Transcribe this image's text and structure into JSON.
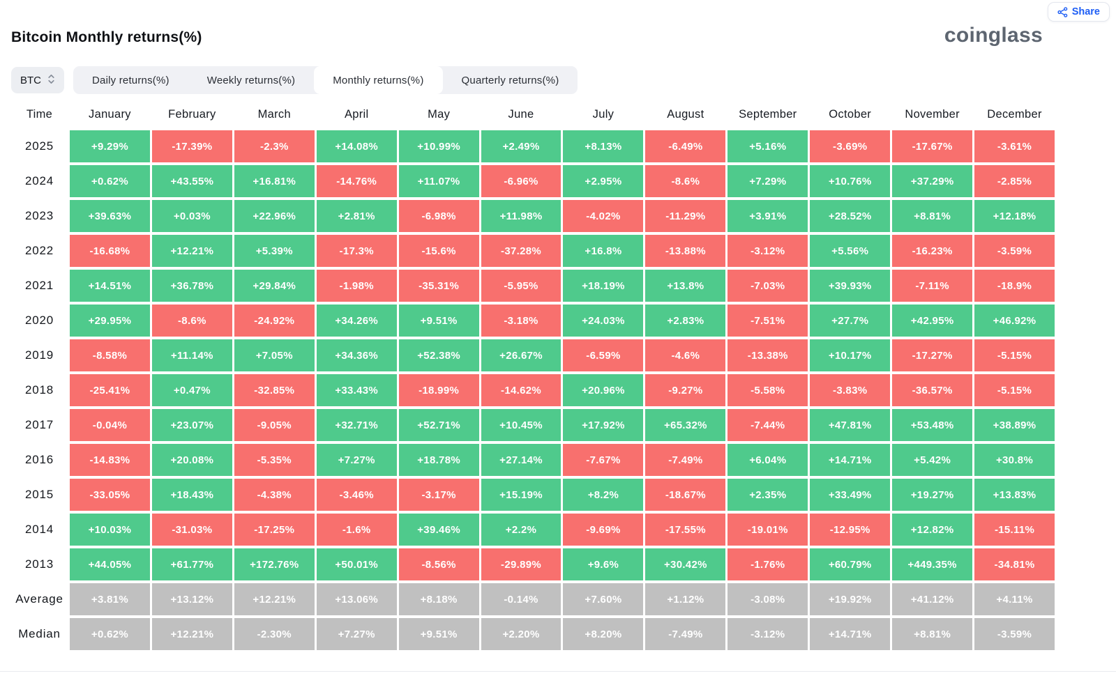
{
  "header": {
    "share_label": "Share",
    "title": "Bitcoin Monthly returns(%)",
    "logo_text": "coinglass"
  },
  "controls": {
    "symbol": "BTC",
    "tabs": [
      {
        "label": "Daily returns(%)",
        "active": false
      },
      {
        "label": "Weekly returns(%)",
        "active": false
      },
      {
        "label": "Monthly returns(%)",
        "active": true
      },
      {
        "label": "Quarterly returns(%)",
        "active": false
      }
    ]
  },
  "colors": {
    "positive": "#4fca8c",
    "negative": "#f8706e",
    "summary": "#c0c0c0",
    "accent": "#1e5ef5",
    "logo": "#5d6570"
  },
  "chart_data": {
    "type": "heatmap",
    "title": "Bitcoin Monthly returns(%)",
    "unit": "%",
    "columns": [
      "Time",
      "January",
      "February",
      "March",
      "April",
      "May",
      "June",
      "July",
      "August",
      "September",
      "October",
      "November",
      "December"
    ],
    "rows": [
      {
        "label": "2025",
        "kind": "year",
        "values": [
          "+9.29%",
          "-17.39%",
          "-2.3%",
          "+14.08%",
          "+10.99%",
          "+2.49%",
          "+8.13%",
          "-6.49%",
          "+5.16%",
          "-3.69%",
          "-17.67%",
          "-3.61%"
        ]
      },
      {
        "label": "2024",
        "kind": "year",
        "values": [
          "+0.62%",
          "+43.55%",
          "+16.81%",
          "-14.76%",
          "+11.07%",
          "-6.96%",
          "+2.95%",
          "-8.6%",
          "+7.29%",
          "+10.76%",
          "+37.29%",
          "-2.85%"
        ]
      },
      {
        "label": "2023",
        "kind": "year",
        "values": [
          "+39.63%",
          "+0.03%",
          "+22.96%",
          "+2.81%",
          "-6.98%",
          "+11.98%",
          "-4.02%",
          "-11.29%",
          "+3.91%",
          "+28.52%",
          "+8.81%",
          "+12.18%"
        ]
      },
      {
        "label": "2022",
        "kind": "year",
        "values": [
          "-16.68%",
          "+12.21%",
          "+5.39%",
          "-17.3%",
          "-15.6%",
          "-37.28%",
          "+16.8%",
          "-13.88%",
          "-3.12%",
          "+5.56%",
          "-16.23%",
          "-3.59%"
        ]
      },
      {
        "label": "2021",
        "kind": "year",
        "values": [
          "+14.51%",
          "+36.78%",
          "+29.84%",
          "-1.98%",
          "-35.31%",
          "-5.95%",
          "+18.19%",
          "+13.8%",
          "-7.03%",
          "+39.93%",
          "-7.11%",
          "-18.9%"
        ]
      },
      {
        "label": "2020",
        "kind": "year",
        "values": [
          "+29.95%",
          "-8.6%",
          "-24.92%",
          "+34.26%",
          "+9.51%",
          "-3.18%",
          "+24.03%",
          "+2.83%",
          "-7.51%",
          "+27.7%",
          "+42.95%",
          "+46.92%"
        ]
      },
      {
        "label": "2019",
        "kind": "year",
        "values": [
          "-8.58%",
          "+11.14%",
          "+7.05%",
          "+34.36%",
          "+52.38%",
          "+26.67%",
          "-6.59%",
          "-4.6%",
          "-13.38%",
          "+10.17%",
          "-17.27%",
          "-5.15%"
        ]
      },
      {
        "label": "2018",
        "kind": "year",
        "values": [
          "-25.41%",
          "+0.47%",
          "-32.85%",
          "+33.43%",
          "-18.99%",
          "-14.62%",
          "+20.96%",
          "-9.27%",
          "-5.58%",
          "-3.83%",
          "-36.57%",
          "-5.15%"
        ]
      },
      {
        "label": "2017",
        "kind": "year",
        "values": [
          "-0.04%",
          "+23.07%",
          "-9.05%",
          "+32.71%",
          "+52.71%",
          "+10.45%",
          "+17.92%",
          "+65.32%",
          "-7.44%",
          "+47.81%",
          "+53.48%",
          "+38.89%"
        ]
      },
      {
        "label": "2016",
        "kind": "year",
        "values": [
          "-14.83%",
          "+20.08%",
          "-5.35%",
          "+7.27%",
          "+18.78%",
          "+27.14%",
          "-7.67%",
          "-7.49%",
          "+6.04%",
          "+14.71%",
          "+5.42%",
          "+30.8%"
        ]
      },
      {
        "label": "2015",
        "kind": "year",
        "values": [
          "-33.05%",
          "+18.43%",
          "-4.38%",
          "-3.46%",
          "-3.17%",
          "+15.19%",
          "+8.2%",
          "-18.67%",
          "+2.35%",
          "+33.49%",
          "+19.27%",
          "+13.83%"
        ]
      },
      {
        "label": "2014",
        "kind": "year",
        "values": [
          "+10.03%",
          "-31.03%",
          "-17.25%",
          "-1.6%",
          "+39.46%",
          "+2.2%",
          "-9.69%",
          "-17.55%",
          "-19.01%",
          "-12.95%",
          "+12.82%",
          "-15.11%"
        ]
      },
      {
        "label": "2013",
        "kind": "year",
        "values": [
          "+44.05%",
          "+61.77%",
          "+172.76%",
          "+50.01%",
          "-8.56%",
          "-29.89%",
          "+9.6%",
          "+30.42%",
          "-1.76%",
          "+60.79%",
          "+449.35%",
          "-34.81%"
        ]
      },
      {
        "label": "Average",
        "kind": "summary",
        "values": [
          "+3.81%",
          "+13.12%",
          "+12.21%",
          "+13.06%",
          "+8.18%",
          "-0.14%",
          "+7.60%",
          "+1.12%",
          "-3.08%",
          "+19.92%",
          "+41.12%",
          "+4.11%"
        ]
      },
      {
        "label": "Median",
        "kind": "summary",
        "values": [
          "+0.62%",
          "+12.21%",
          "-2.30%",
          "+7.27%",
          "+9.51%",
          "+2.20%",
          "+8.20%",
          "-7.49%",
          "-3.12%",
          "+14.71%",
          "+8.81%",
          "-3.59%"
        ]
      }
    ],
    "legend": "green = positive monthly return, red = negative monthly return, gray = summary statistic rows"
  }
}
